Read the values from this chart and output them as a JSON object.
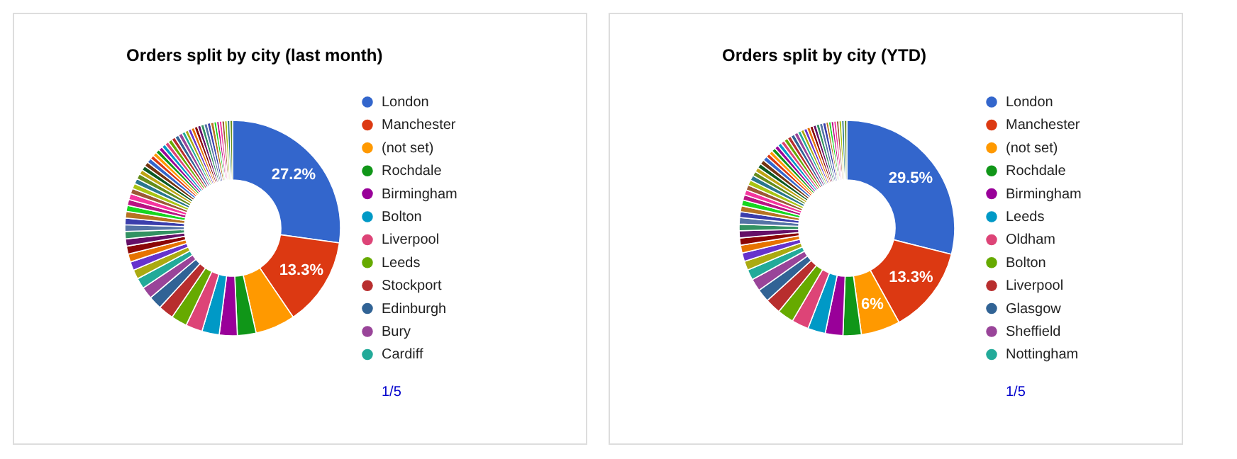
{
  "chart_data": [
    {
      "type": "donut",
      "title": "Orders split by city (last month)",
      "legend": "right",
      "annotations": [
        "1/5"
      ],
      "categories": [
        "London",
        "Manchester",
        "(not set)",
        "Rochdale",
        "Birmingham",
        "Bolton",
        "Liverpool",
        "Leeds",
        "Stockport",
        "Edinburgh",
        "Bury",
        "Cardiff",
        null,
        null,
        null,
        null,
        null,
        null,
        null,
        null,
        null,
        null,
        null,
        null,
        null,
        null,
        null,
        null,
        null,
        null,
        null,
        null,
        null,
        null,
        null,
        null,
        null,
        null,
        null,
        null,
        null,
        null,
        null,
        null,
        null,
        null,
        null,
        null,
        null,
        null,
        null,
        null,
        null,
        null,
        null,
        null,
        null,
        null,
        null
      ],
      "values": [
        27.2,
        13.3,
        6,
        2.8,
        2.7,
        2.6,
        2.5,
        2.4,
        2.3,
        2.0,
        1.8,
        1.6,
        1.4,
        1.3,
        1.2,
        1.2,
        1.1,
        1.1,
        1.0,
        1.0,
        1.0,
        0.9,
        0.9,
        0.9,
        0.8,
        0.8,
        0.8,
        0.8,
        0.7,
        0.7,
        0.7,
        0.7,
        0.6,
        0.6,
        0.6,
        0.6,
        0.6,
        0.6,
        0.6,
        0.6,
        0.6,
        0.6,
        0.5,
        0.5,
        0.5,
        0.5,
        0.5,
        0.5,
        0.5,
        0.5,
        0.5,
        0.5,
        0.4,
        0.4,
        0.4,
        0.4,
        0.4,
        0.4,
        0.4
      ],
      "value_labels": [
        "27.2%",
        "13.3%",
        null,
        null,
        null,
        null,
        null,
        null,
        null,
        null,
        null,
        null,
        null,
        null,
        null,
        null,
        null,
        null,
        null,
        null,
        null,
        null,
        null,
        null,
        null,
        null,
        null,
        null,
        null,
        null,
        null,
        null,
        null,
        null,
        null,
        null,
        null,
        null,
        null,
        null,
        null,
        null,
        null,
        null,
        null,
        null,
        null,
        null,
        null,
        null,
        null,
        null,
        null,
        null,
        null,
        null,
        null,
        null,
        null
      ],
      "colors": [
        "#3366cc",
        "#dc3912",
        "#ff9900",
        "#109618",
        "#990099",
        "#0099c6",
        "#dd4477",
        "#66aa00",
        "#b82e2e",
        "#316395",
        "#994499",
        "#22aa99",
        "#aaaa11",
        "#6633cc",
        "#e67300",
        "#8b0707",
        "#651067",
        "#329262",
        "#5574a6",
        "#3b3eac",
        "#b77322",
        "#16d620",
        "#b91383",
        "#f4359e",
        "#9c5935",
        "#a9c413",
        "#2a778d",
        "#668d1c",
        "#bea413",
        "#0c5922",
        "#743411",
        "#3366cc",
        "#dc3912",
        "#ff9900",
        "#109618",
        "#990099",
        "#0099c6",
        "#dd4477",
        "#66aa00",
        "#b82e2e",
        "#316395",
        "#994499",
        "#22aa99",
        "#aaaa11",
        "#6633cc",
        "#e67300",
        "#8b0707",
        "#651067",
        "#329262",
        "#5574a6",
        "#3b3eac",
        "#b77322",
        "#16d620",
        "#b91383",
        "#f4359e",
        "#9c5935",
        "#a9c413",
        "#2a778d",
        "#668d1c"
      ]
    },
    {
      "type": "donut",
      "title": "Orders split by city (YTD)",
      "legend": "right",
      "annotations": [
        "1/5"
      ],
      "categories": [
        "London",
        "Manchester",
        "(not set)",
        "Rochdale",
        "Birmingham",
        "Leeds",
        "Oldham",
        "Bolton",
        "Liverpool",
        "Glasgow",
        "Sheffield",
        "Nottingham",
        null,
        null,
        null,
        null,
        null,
        null,
        null,
        null,
        null,
        null,
        null,
        null,
        null,
        null,
        null,
        null,
        null,
        null,
        null,
        null,
        null,
        null,
        null,
        null,
        null,
        null,
        null,
        null,
        null,
        null,
        null,
        null,
        null,
        null,
        null,
        null,
        null,
        null,
        null,
        null,
        null,
        null,
        null,
        null,
        null,
        null,
        null
      ],
      "values": [
        29.5,
        13.3,
        6,
        2.8,
        2.7,
        2.7,
        2.6,
        2.5,
        2.4,
        2.0,
        1.9,
        1.6,
        1.4,
        1.3,
        1.2,
        1.1,
        1.1,
        1.0,
        1.0,
        0.9,
        0.9,
        0.9,
        0.8,
        0.8,
        0.8,
        0.8,
        0.8,
        0.7,
        0.7,
        0.7,
        0.7,
        0.7,
        0.6,
        0.6,
        0.6,
        0.6,
        0.6,
        0.6,
        0.6,
        0.6,
        0.6,
        0.6,
        0.5,
        0.5,
        0.5,
        0.5,
        0.5,
        0.5,
        0.5,
        0.5,
        0.5,
        0.4,
        0.4,
        0.4,
        0.4,
        0.4,
        0.4,
        0.4,
        0.4
      ],
      "value_labels": [
        "29.5%",
        "13.3%",
        "6%",
        null,
        null,
        null,
        null,
        null,
        null,
        null,
        null,
        null,
        null,
        null,
        null,
        null,
        null,
        null,
        null,
        null,
        null,
        null,
        null,
        null,
        null,
        null,
        null,
        null,
        null,
        null,
        null,
        null,
        null,
        null,
        null,
        null,
        null,
        null,
        null,
        null,
        null,
        null,
        null,
        null,
        null,
        null,
        null,
        null,
        null,
        null,
        null,
        null,
        null,
        null,
        null,
        null,
        null,
        null,
        null
      ],
      "colors": [
        "#3366cc",
        "#dc3912",
        "#ff9900",
        "#109618",
        "#990099",
        "#0099c6",
        "#dd4477",
        "#66aa00",
        "#b82e2e",
        "#316395",
        "#994499",
        "#22aa99",
        "#aaaa11",
        "#6633cc",
        "#e67300",
        "#8b0707",
        "#651067",
        "#329262",
        "#5574a6",
        "#3b3eac",
        "#b77322",
        "#16d620",
        "#b91383",
        "#f4359e",
        "#9c5935",
        "#a9c413",
        "#2a778d",
        "#668d1c",
        "#bea413",
        "#0c5922",
        "#743411",
        "#3366cc",
        "#dc3912",
        "#ff9900",
        "#109618",
        "#990099",
        "#0099c6",
        "#dd4477",
        "#66aa00",
        "#b82e2e",
        "#316395",
        "#994499",
        "#22aa99",
        "#aaaa11",
        "#6633cc",
        "#e67300",
        "#8b0707",
        "#651067",
        "#329262",
        "#5574a6",
        "#3b3eac",
        "#b77322",
        "#16d620",
        "#b91383",
        "#f4359e",
        "#9c5935",
        "#a9c413",
        "#2a778d",
        "#668d1c"
      ]
    }
  ]
}
